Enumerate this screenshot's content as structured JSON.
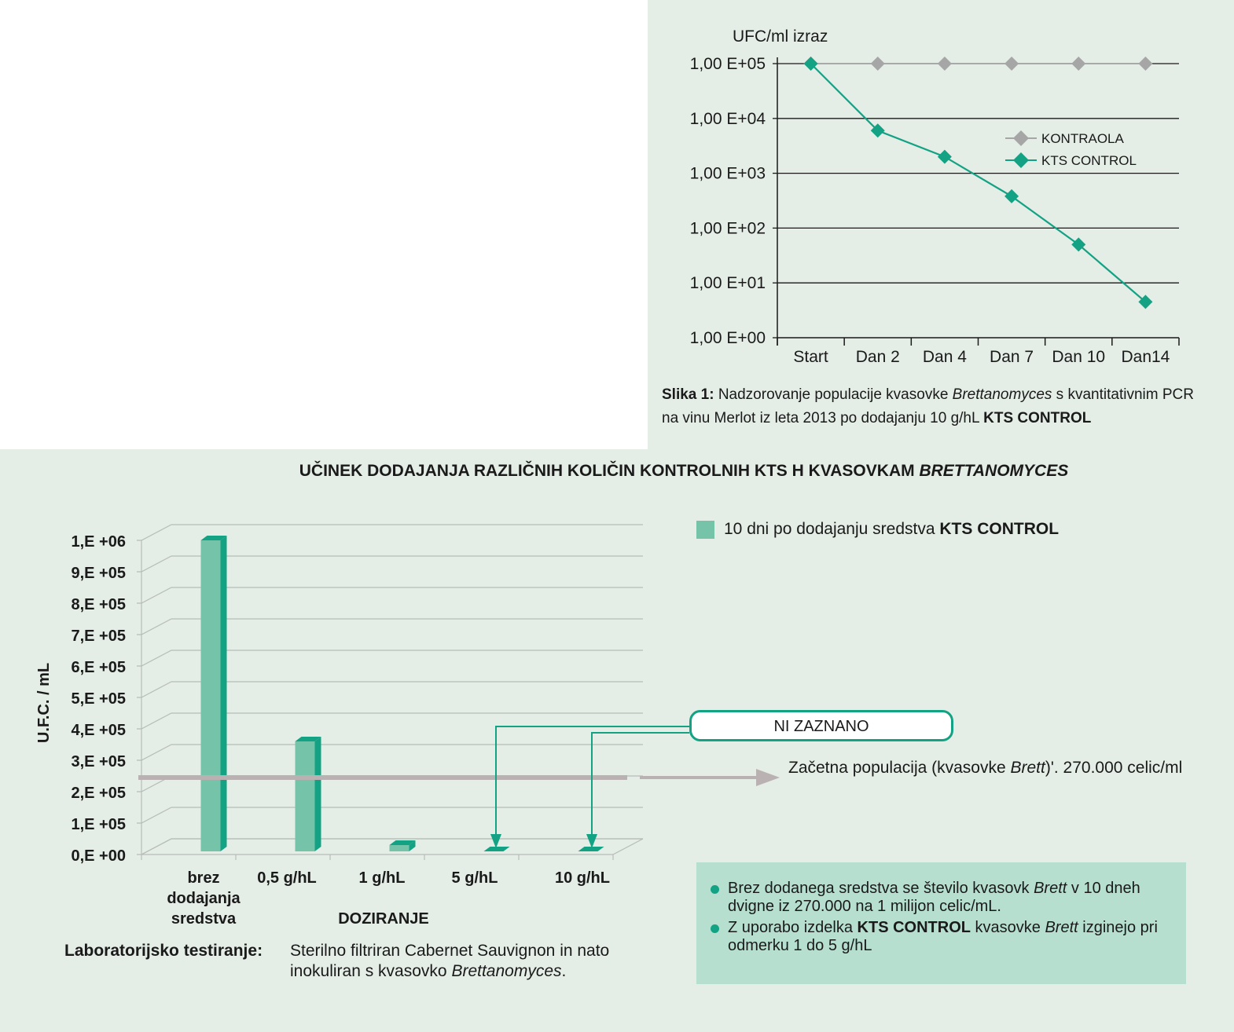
{
  "figure1": {
    "y_unit_label": "UFC/ml izraz",
    "caption_bold": "Slika 1:",
    "caption_text_a": " Nadzorovanje populacije kvasovke ",
    "caption_italic": "Brettanomyces",
    "caption_text_b": " s kvantitativnim PCR na vinu Merlot iz leta 2013 po dodajanju 10 g/hL ",
    "caption_bold_end": "KTS CONTROL",
    "colors": {
      "kontraola": "#a6a6a6",
      "kts": "#13a283"
    }
  },
  "figure2": {
    "title_main": "UČINEK DODAJANJA RAZLIČNIH KOLIČIN KONTROLNIH KTS H KVASOVKAM ",
    "title_italic": "BRETTANOMYCES",
    "legend_text": "10 dni po dodajanju sredstva ",
    "legend_bold": "KTS CONTROL",
    "not_detected_label": "NI ZAZNANO",
    "initial_text_a": "Začetna populacija (kvasovke ",
    "initial_italic": "Brett",
    "initial_text_b": ")'. 270.000 celic/ml",
    "lab_label": "Laboratorijsko testiranje:",
    "lab_text_a": "Sterilno filtriran Cabernet Sauvignon in nato inokuliran s kvasovko ",
    "lab_italic": "Brettanomyces",
    "lab_text_b": ".",
    "note1_a": "Brez dodanega sredstva se število kvasovk ",
    "note1_italic": "Brett",
    "note1_b": " v 10 dneh dvigne iz 270.000 na 1 milijon celic/mL.",
    "note2_a": "Z uporabo izdelka ",
    "note2_bold": "KTS CONTROL",
    "note2_b": " kvasovke ",
    "note2_italic": "Brett",
    "note2_c": " izginejo pri odmerku 1 do 5 g/hL",
    "colors": {
      "bar_front": "#75c3a8",
      "bar_side": "#13a283",
      "init_line": "#bab2b2"
    }
  },
  "chart_data": [
    {
      "type": "line",
      "ylabel": "UFC/ml izraz",
      "yscale": "log",
      "ylim": [
        1,
        100000
      ],
      "y_tick_labels": [
        "1,00 E+00",
        "1,00 E+01",
        "1,00 E+02",
        "1,00 E+03",
        "1,00 E+04",
        "1,00 E+05"
      ],
      "categories": [
        "Start",
        "Dan 2",
        "Dan 4",
        "Dan 7",
        "Dan 10",
        "Dan14"
      ],
      "series": [
        {
          "name": "KONTRAOLA",
          "values": [
            100000,
            100000,
            100000,
            100000,
            100000,
            100000
          ]
        },
        {
          "name": "KTS CONTROL",
          "values": [
            100000,
            6000,
            2000,
            380,
            50,
            4.5
          ]
        }
      ],
      "grid": true,
      "legend": "right"
    },
    {
      "type": "bar",
      "ylabel": "U.F.C. / mL",
      "xlabel": "DOZIRANJE",
      "ylim": [
        0,
        1000000
      ],
      "y_tick_labels": [
        "0,E +00",
        "1,E +05",
        "2,E +05",
        "3,E +05",
        "4,E +05",
        "5,E +05",
        "6,E +05",
        "7,E +05",
        "8,E +05",
        "9,E +05",
        "1,E +06"
      ],
      "categories": [
        "brez dodajanja sredstva",
        "0,5 g/hL",
        "1 g/hL",
        "5 g/hL",
        "10 g/hL"
      ],
      "series": [
        {
          "name": "10 dni po dodajanju sredstva KTS CONTROL",
          "values": [
            1000000,
            360000,
            30000,
            0,
            0
          ]
        }
      ],
      "reference_line": {
        "value": 270000
      },
      "grid": true,
      "legend": "top-right"
    }
  ]
}
